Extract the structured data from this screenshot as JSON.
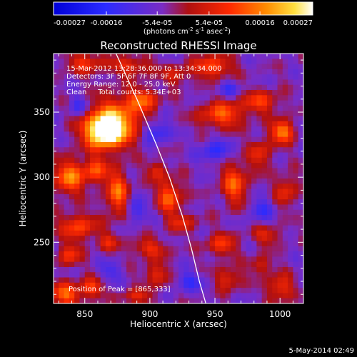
{
  "chart_data": {
    "type": "heatmap",
    "title": "Reconstructed RHESSI Image",
    "xlabel": "Heliocentric X (arcsec)",
    "ylabel": "Heliocentric Y (arcsec)",
    "xlim": [
      826,
      1018
    ],
    "ylim": [
      203,
      395
    ],
    "xticks": [
      850,
      900,
      950,
      1000
    ],
    "yticks": [
      250,
      300,
      350
    ],
    "colorbar": {
      "range": [
        -0.00027,
        0.00027
      ],
      "tick_values": [
        -0.00027,
        -0.00016,
        -5.4e-05,
        5.4e-05,
        0.00016,
        0.00027
      ],
      "tick_labels": [
        "-0.00027",
        "-0.00016",
        "-5.4e-05",
        "5.4e-05",
        "0.00016",
        "0.00027"
      ],
      "colors": [
        "#0000d8",
        "#2b2bff",
        "#7a2cc4",
        "#b01010",
        "#ff2a00",
        "#ff8c00",
        "#ffe040",
        "#ffffff"
      ],
      "units_label": "(photons cm",
      "units_exp1": "-2",
      "units_mid": " s",
      "units_exp2": "-1",
      "units_tail": " asec",
      "units_exp3": "-2",
      "units_close": ")"
    },
    "annotations": [
      "15-Mar-2012 13:28:36.000 to 13:34:34.000",
      "Detectors: 3F 5F 6F 7F 8F 9F, Att 0",
      "Energy Range: 12.0 - 25.0 keV",
      "Clean     Total counts: 5.34E+03"
    ],
    "peak_label": "Position of Peak = [865,333]",
    "peak": [
      865,
      333
    ],
    "limb_curve": [
      [
        874,
        395
      ],
      [
        890,
        360
      ],
      [
        905,
        325
      ],
      [
        915,
        300
      ],
      [
        925,
        270
      ],
      [
        932,
        245
      ],
      [
        938,
        220
      ],
      [
        943,
        203
      ]
    ],
    "sources": [
      {
        "x": 865,
        "y": 335,
        "amp": 1.0,
        "sx": 11,
        "sy": 9
      },
      {
        "x": 875,
        "y": 345,
        "amp": 0.55,
        "sx": 14,
        "sy": 12
      },
      {
        "x": 895,
        "y": 360,
        "amp": 0.45,
        "sx": 8,
        "sy": 6
      },
      {
        "x": 885,
        "y": 385,
        "amp": 0.35,
        "sx": 12,
        "sy": 5
      },
      {
        "x": 850,
        "y": 388,
        "amp": 0.35,
        "sx": 10,
        "sy": 6
      },
      {
        "x": 948,
        "y": 385,
        "amp": 0.5,
        "sx": 10,
        "sy": 6
      },
      {
        "x": 955,
        "y": 348,
        "amp": 0.5,
        "sx": 12,
        "sy": 7
      },
      {
        "x": 985,
        "y": 358,
        "amp": 0.4,
        "sx": 10,
        "sy": 6
      },
      {
        "x": 1002,
        "y": 335,
        "amp": 0.65,
        "sx": 6,
        "sy": 6
      },
      {
        "x": 985,
        "y": 318,
        "amp": 0.35,
        "sx": 6,
        "sy": 8
      },
      {
        "x": 838,
        "y": 300,
        "amp": 0.6,
        "sx": 8,
        "sy": 9
      },
      {
        "x": 858,
        "y": 305,
        "amp": 0.45,
        "sx": 7,
        "sy": 7
      },
      {
        "x": 875,
        "y": 288,
        "amp": 0.55,
        "sx": 6,
        "sy": 12
      },
      {
        "x": 915,
        "y": 285,
        "amp": 0.5,
        "sx": 7,
        "sy": 9
      },
      {
        "x": 905,
        "y": 305,
        "amp": 0.35,
        "sx": 5,
        "sy": 5
      },
      {
        "x": 965,
        "y": 295,
        "amp": 0.5,
        "sx": 7,
        "sy": 11
      },
      {
        "x": 1005,
        "y": 290,
        "amp": 0.35,
        "sx": 6,
        "sy": 8
      },
      {
        "x": 845,
        "y": 262,
        "amp": 0.45,
        "sx": 10,
        "sy": 7
      },
      {
        "x": 838,
        "y": 240,
        "amp": 0.4,
        "sx": 6,
        "sy": 6
      },
      {
        "x": 868,
        "y": 250,
        "amp": 0.3,
        "sx": 6,
        "sy": 5
      },
      {
        "x": 925,
        "y": 265,
        "amp": 0.3,
        "sx": 8,
        "sy": 5
      },
      {
        "x": 900,
        "y": 245,
        "amp": 0.35,
        "sx": 10,
        "sy": 5
      },
      {
        "x": 955,
        "y": 248,
        "amp": 0.4,
        "sx": 8,
        "sy": 6
      },
      {
        "x": 990,
        "y": 255,
        "amp": 0.3,
        "sx": 8,
        "sy": 5
      },
      {
        "x": 905,
        "y": 225,
        "amp": 0.35,
        "sx": 7,
        "sy": 6
      },
      {
        "x": 890,
        "y": 208,
        "amp": 0.3,
        "sx": 9,
        "sy": 4
      },
      {
        "x": 960,
        "y": 222,
        "amp": 0.35,
        "sx": 7,
        "sy": 6
      },
      {
        "x": 1000,
        "y": 215,
        "amp": 0.4,
        "sx": 7,
        "sy": 7
      },
      {
        "x": 985,
        "y": 232,
        "amp": 0.3,
        "sx": 6,
        "sy": 5
      },
      {
        "x": 835,
        "y": 210,
        "amp": 0.55,
        "sx": 8,
        "sy": 6
      },
      {
        "x": 855,
        "y": 215,
        "amp": 0.45,
        "sx": 6,
        "sy": 5
      },
      {
        "x": 920,
        "y": 378,
        "amp": 0.3,
        "sx": 7,
        "sy": 5
      }
    ],
    "sinks": [
      {
        "x": 905,
        "y": 335,
        "amp": 0.45,
        "sx": 7,
        "sy": 6
      },
      {
        "x": 950,
        "y": 320,
        "amp": 0.4,
        "sx": 8,
        "sy": 6
      },
      {
        "x": 890,
        "y": 275,
        "amp": 0.35,
        "sx": 6,
        "sy": 6
      },
      {
        "x": 930,
        "y": 220,
        "amp": 0.35,
        "sx": 8,
        "sy": 5
      },
      {
        "x": 870,
        "y": 228,
        "amp": 0.3,
        "sx": 6,
        "sy": 5
      },
      {
        "x": 985,
        "y": 275,
        "amp": 0.35,
        "sx": 6,
        "sy": 6
      },
      {
        "x": 845,
        "y": 355,
        "amp": 0.35,
        "sx": 5,
        "sy": 5
      },
      {
        "x": 960,
        "y": 368,
        "amp": 0.3,
        "sx": 6,
        "sy": 4
      }
    ]
  },
  "footer_date": "5-May-2014 02:49"
}
